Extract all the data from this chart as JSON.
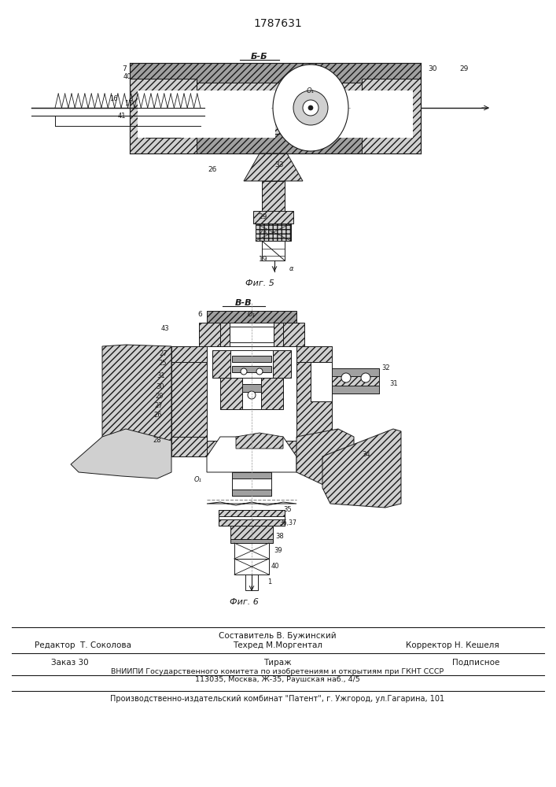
{
  "patent_number": "1787631",
  "bg_color": "#ffffff",
  "dc": "#1a1a1a",
  "fig5_label": "Фиг. 5",
  "fig6_label": "Фиг. 6",
  "section_b_label": "Б-Б",
  "section_vv_label": "В-В",
  "footer_sestavitel": "Составитель В. Бужинский",
  "footer_editor": "Редактор  Т. Соколова",
  "footer_tekhred": "Техред М.Моргентал",
  "footer_korrektor": "Корректор Н. Кешеля",
  "footer_zakaz": "Заказ 30",
  "footer_tirazh": "Тираж",
  "footer_podpisnoe": "Подписное",
  "footer_vniipи": "ВНИИПИ Государственного комитета по изобретениям и открытиям при ГКНТ СССР",
  "footer_address": "113035, Москва, Ж-35, Раушская наб., 4/5",
  "footer_proizv": "Производственно-издательский комбинат \"Патент\", г. Ужгород, ул.Гагарина, 101",
  "hatch_color": "#444444",
  "light_gray": "#d0d0d0",
  "mid_gray": "#a0a0a0",
  "dark_gray": "#707070"
}
